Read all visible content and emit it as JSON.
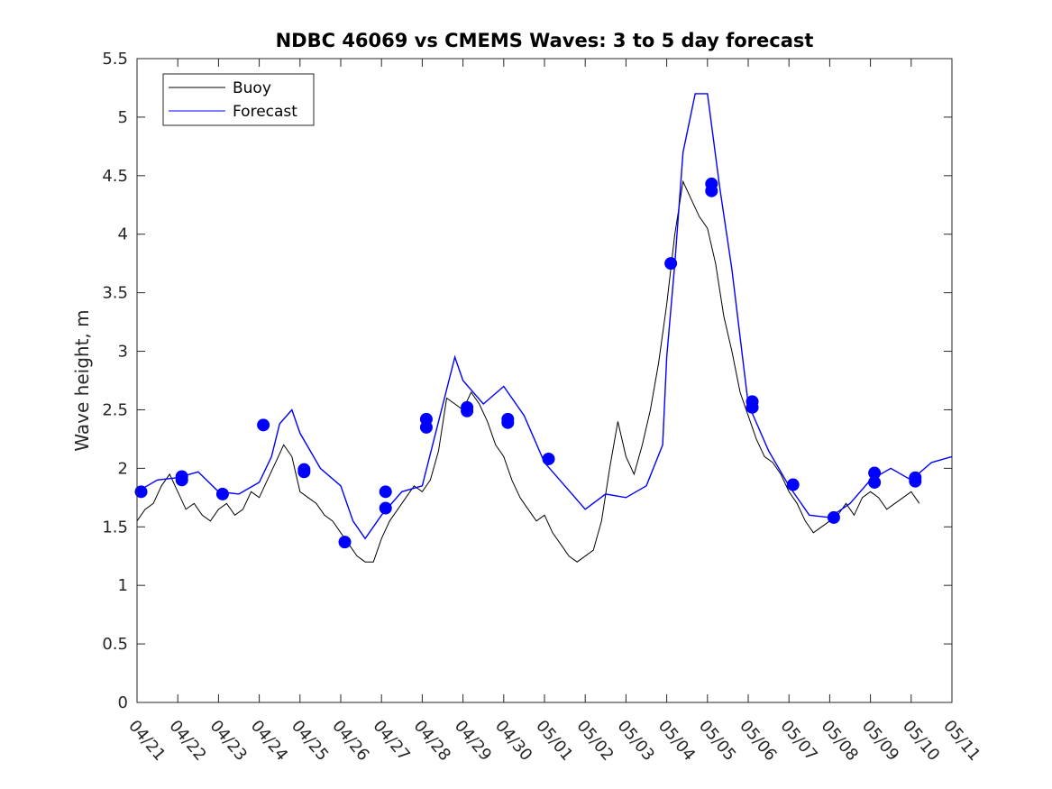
{
  "chart_data": {
    "type": "line",
    "title": "NDBC 46069 vs CMEMS Waves: 3 to 5 day forecast",
    "ylabel": "Wave height, m",
    "xlabel": "",
    "ylim": [
      0,
      5.5
    ],
    "xlim": [
      "04/21",
      "05/11"
    ],
    "yticks": [
      "0",
      "0.5",
      "1",
      "1.5",
      "2",
      "2.5",
      "3",
      "3.5",
      "4",
      "4.5",
      "5",
      "5.5"
    ],
    "xticks": [
      "04/21",
      "04/22",
      "04/23",
      "04/24",
      "04/25",
      "04/26",
      "04/27",
      "04/28",
      "04/29",
      "04/30",
      "05/01",
      "05/02",
      "05/03",
      "05/04",
      "05/05",
      "05/06",
      "05/07",
      "05/08",
      "05/09",
      "05/10",
      "05/11"
    ],
    "grid": false,
    "legend": {
      "position": "top-left",
      "entries": [
        "Buoy",
        "Forecast"
      ]
    },
    "colors": {
      "buoy": "#000000",
      "forecast": "#0000ff",
      "marker": "#0000ff"
    },
    "series": [
      {
        "name": "Buoy",
        "x_days": [
          0,
          0.2,
          0.4,
          0.6,
          0.8,
          1.0,
          1.2,
          1.4,
          1.6,
          1.8,
          2.0,
          2.2,
          2.4,
          2.6,
          2.8,
          3.0,
          3.2,
          3.4,
          3.6,
          3.8,
          4.0,
          4.2,
          4.4,
          4.6,
          4.8,
          5.0,
          5.2,
          5.4,
          5.6,
          5.8,
          6.0,
          6.2,
          6.4,
          6.6,
          6.8,
          7.0,
          7.2,
          7.4,
          7.6,
          7.8,
          8.0,
          8.2,
          8.4,
          8.6,
          8.8,
          9.0,
          9.2,
          9.4,
          9.6,
          9.8,
          10.0,
          10.2,
          10.4,
          10.6,
          10.8,
          11.0,
          11.2,
          11.4,
          11.6,
          11.8,
          12.0,
          12.2,
          12.4,
          12.6,
          12.8,
          13.0,
          13.2,
          13.4,
          13.6,
          13.8,
          14.0,
          14.2,
          14.4,
          14.6,
          14.8,
          15.0,
          15.2,
          15.4,
          15.6,
          15.8,
          16.0,
          16.2,
          16.4,
          16.6,
          16.8,
          17.0,
          17.2,
          17.4,
          17.6,
          17.8,
          18.0,
          18.2,
          18.4,
          18.6,
          18.8,
          19.0,
          19.2
        ],
        "values": [
          1.55,
          1.65,
          1.7,
          1.85,
          1.95,
          1.8,
          1.65,
          1.7,
          1.6,
          1.55,
          1.65,
          1.7,
          1.6,
          1.65,
          1.8,
          1.75,
          1.9,
          2.05,
          2.2,
          2.1,
          1.8,
          1.75,
          1.7,
          1.6,
          1.55,
          1.45,
          1.35,
          1.25,
          1.2,
          1.2,
          1.4,
          1.55,
          1.65,
          1.75,
          1.85,
          1.8,
          1.9,
          2.15,
          2.6,
          2.55,
          2.5,
          2.65,
          2.55,
          2.4,
          2.2,
          2.1,
          1.9,
          1.75,
          1.65,
          1.55,
          1.6,
          1.45,
          1.35,
          1.25,
          1.2,
          1.25,
          1.3,
          1.55,
          2.0,
          2.4,
          2.1,
          1.95,
          2.2,
          2.5,
          2.9,
          3.4,
          4.0,
          4.45,
          4.3,
          4.15,
          4.05,
          3.75,
          3.3,
          3.0,
          2.65,
          2.45,
          2.25,
          2.1,
          2.05,
          1.95,
          1.8,
          1.7,
          1.55,
          1.45,
          1.5,
          1.55,
          1.6,
          1.7,
          1.6,
          1.75,
          1.8,
          1.75,
          1.65,
          1.7,
          1.75,
          1.8,
          1.7
        ]
      },
      {
        "name": "Forecast",
        "x_days": [
          0,
          0.5,
          1.0,
          1.5,
          2.0,
          2.5,
          3.0,
          3.3,
          3.5,
          3.8,
          4.0,
          4.5,
          5.0,
          5.3,
          5.6,
          6.0,
          6.5,
          7.0,
          7.4,
          7.8,
          8.0,
          8.5,
          9.0,
          9.5,
          10.0,
          10.5,
          11.0,
          11.5,
          12.0,
          12.5,
          12.9,
          13.0,
          13.2,
          13.4,
          13.7,
          14.0,
          14.3,
          14.6,
          15.0,
          15.5,
          16.0,
          16.5,
          17.0,
          17.5,
          18.0,
          18.5,
          19.0,
          19.5,
          20.0
        ],
        "values": [
          1.8,
          1.9,
          1.92,
          1.97,
          1.8,
          1.78,
          1.88,
          2.1,
          2.38,
          2.5,
          2.3,
          2.0,
          1.85,
          1.55,
          1.4,
          1.6,
          1.8,
          1.85,
          2.4,
          2.95,
          2.75,
          2.55,
          2.7,
          2.45,
          2.05,
          1.85,
          1.65,
          1.78,
          1.75,
          1.85,
          2.2,
          2.95,
          3.75,
          4.7,
          5.2,
          5.2,
          4.4,
          3.7,
          2.55,
          2.15,
          1.85,
          1.6,
          1.58,
          1.7,
          1.9,
          2.0,
          1.9,
          2.05,
          2.1
        ]
      }
    ],
    "forecast_markers": {
      "x_days": [
        0.1,
        1.1,
        1.1,
        2.1,
        3.1,
        4.1,
        4.1,
        5.1,
        6.1,
        6.1,
        7.1,
        7.1,
        8.1,
        8.1,
        9.1,
        9.1,
        10.1,
        13.1,
        14.1,
        14.1,
        15.1,
        15.1,
        16.1,
        17.1,
        18.1,
        18.1,
        19.1,
        19.1
      ],
      "values": [
        1.8,
        1.9,
        1.93,
        1.78,
        2.37,
        1.97,
        1.99,
        1.37,
        1.8,
        1.66,
        2.42,
        2.35,
        2.52,
        2.49,
        2.42,
        2.39,
        2.08,
        3.75,
        4.43,
        4.37,
        2.57,
        2.52,
        1.86,
        1.58,
        1.96,
        1.88,
        1.92,
        1.89
      ]
    }
  }
}
